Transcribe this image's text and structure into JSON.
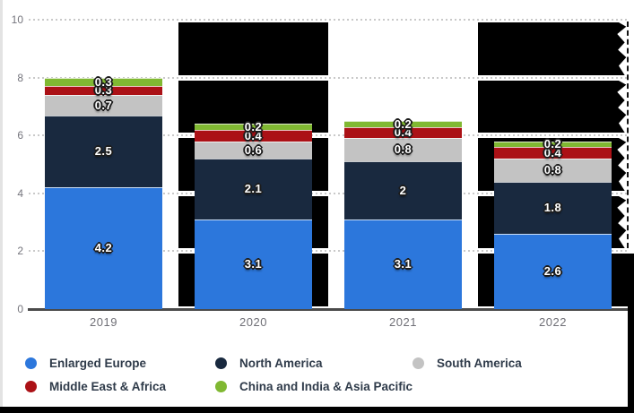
{
  "chart_data": {
    "type": "bar",
    "variant": "stacked-vertical",
    "categories": [
      "2019",
      "2020",
      "2021",
      "2022"
    ],
    "series": [
      {
        "name": "Enlarged Europe",
        "color": "#2c77dc",
        "values": [
          4.2,
          3.1,
          3.1,
          2.6
        ]
      },
      {
        "name": "North America",
        "color": "#19293f",
        "values": [
          2.5,
          2.1,
          2.0,
          1.8
        ]
      },
      {
        "name": "South America",
        "color": "#c3c3c3",
        "values": [
          0.7,
          0.6,
          0.8,
          0.8
        ]
      },
      {
        "name": "Middle East & Africa",
        "color": "#ab1116",
        "values": [
          0.3,
          0.4,
          0.4,
          0.4
        ]
      },
      {
        "name": "China and India & Asia Pacific",
        "color": "#80b832",
        "values": [
          0.3,
          0.2,
          0.2,
          0.2
        ]
      }
    ],
    "value_labels": [
      [
        "4.2",
        "2.5",
        "0.7",
        "0.3",
        "0.3"
      ],
      [
        "3.1",
        "2.1",
        "0.6",
        "0.4",
        "0.2"
      ],
      [
        "3.1",
        "2",
        "0.8",
        "0.4",
        "0.2"
      ],
      [
        "2.6",
        "1.8",
        "0.8",
        "0.4",
        "0.2"
      ]
    ],
    "title": "",
    "xlabel": "",
    "ylabel": "",
    "ylim": [
      0,
      10
    ],
    "y_ticks": [
      0,
      2,
      4,
      6,
      8,
      10
    ],
    "grid": "dotted-horizontal",
    "legend_position": "bottom",
    "legend_rows": [
      [
        "Enlarged Europe",
        "North America",
        "South America"
      ],
      [
        "Middle East & Africa",
        "China and India & Asia Pacific"
      ]
    ]
  },
  "overlays": {
    "blackout_categories": [
      "2020",
      "2022"
    ],
    "blackout_color": "#000000",
    "torn_right_edge": true,
    "bottom_edge_bar": true,
    "right_edge_bar": true
  },
  "axis_colors": {
    "gridline": "#c9c9c9",
    "axis_line": "#4a4a4a",
    "tick_label": "#74747c"
  }
}
